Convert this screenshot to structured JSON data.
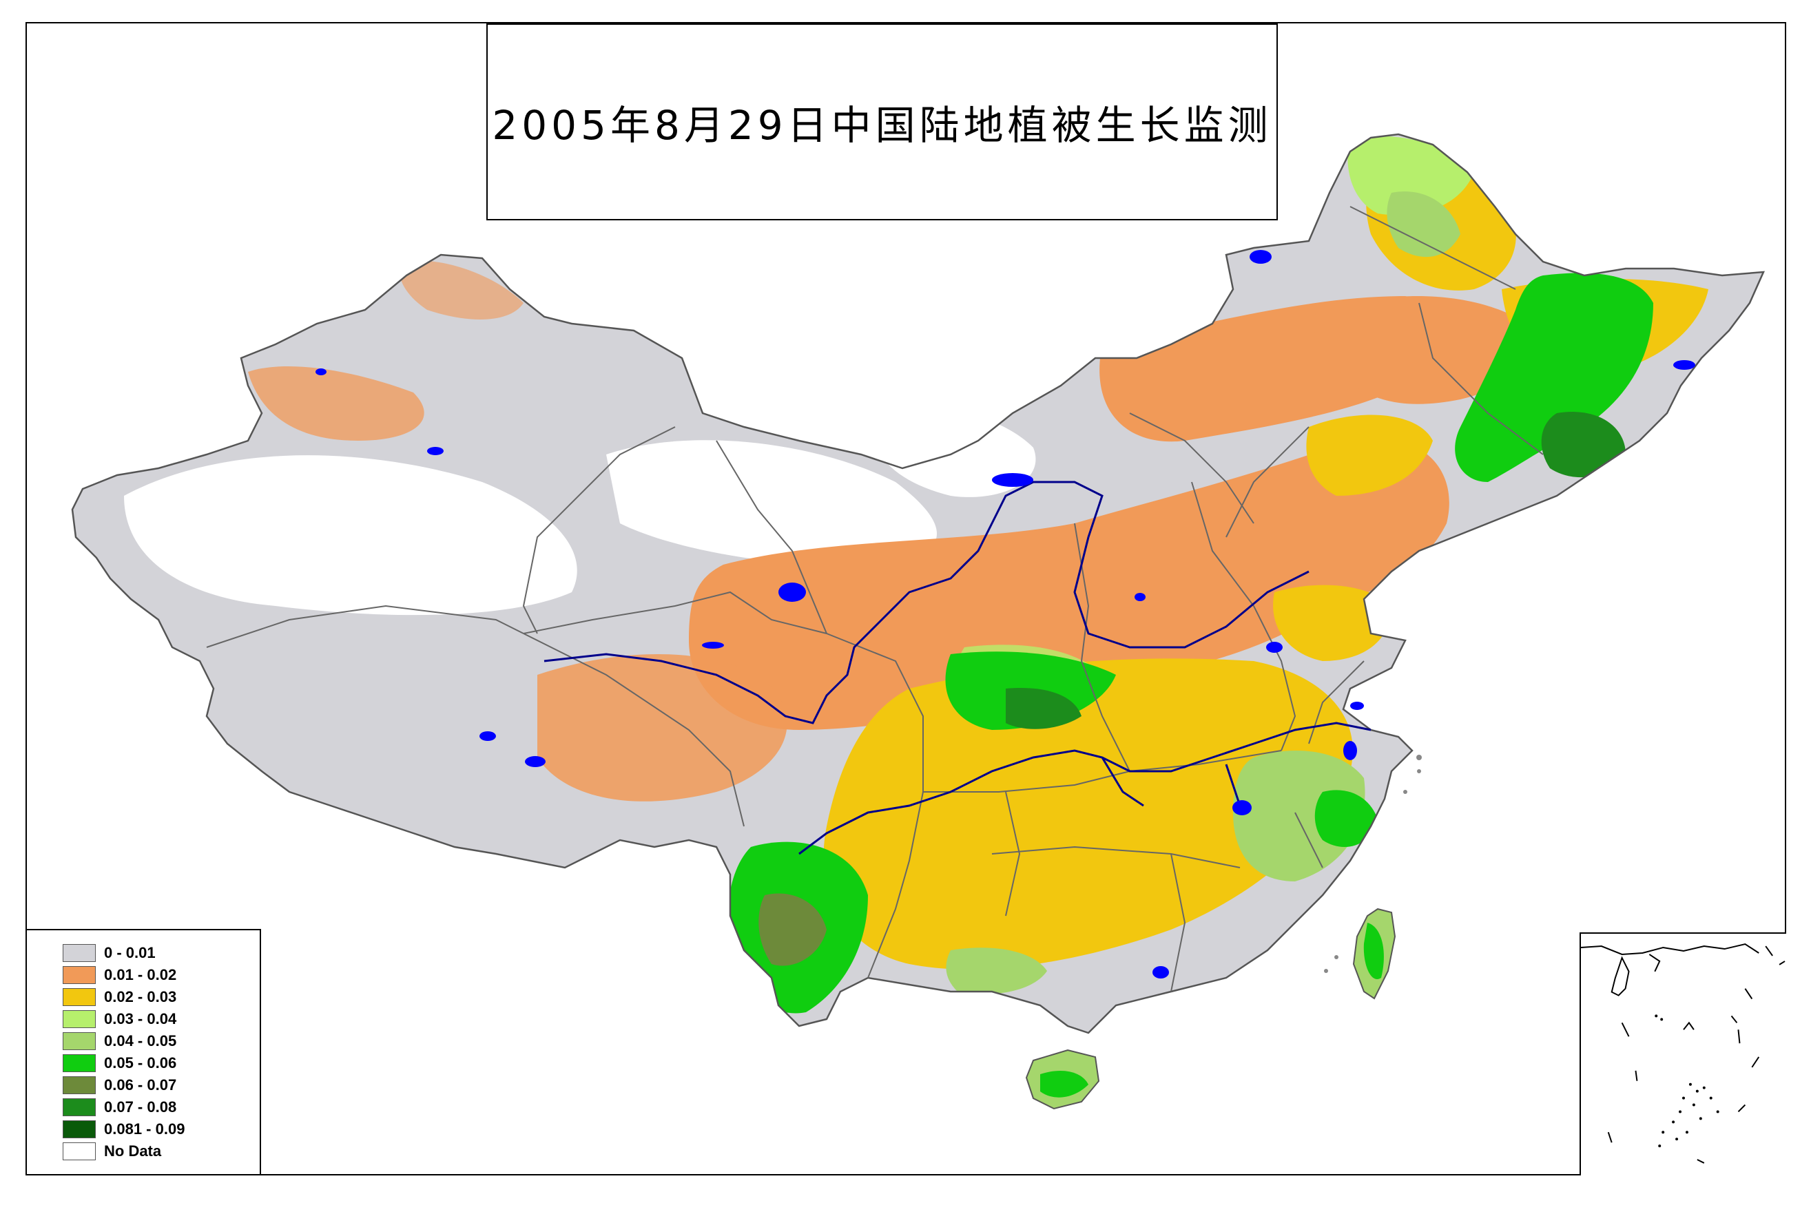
{
  "title": "2005年8月29日中国陆地植被生长监测",
  "legend": {
    "items": [
      {
        "label": "0 - 0.01",
        "color": "#d3d3d8"
      },
      {
        "label": "0.01 - 0.02",
        "color": "#f19a58"
      },
      {
        "label": "0.02 - 0.03",
        "color": "#f2c70f"
      },
      {
        "label": "0.03 - 0.04",
        "color": "#b6ef6c"
      },
      {
        "label": "0.04 - 0.05",
        "color": "#a5d66c"
      },
      {
        "label": "0.05 - 0.06",
        "color": "#10cd10"
      },
      {
        "label": "0.06 - 0.07",
        "color": "#6d8a3a"
      },
      {
        "label": "0.07 - 0.08",
        "color": "#1c8c1c"
      },
      {
        "label": "0.081 - 0.09",
        "color": "#0a5a0a"
      },
      {
        "label": "No Data",
        "color": "#ffffff"
      }
    ]
  },
  "colors": {
    "water": "#0000ff",
    "river": "#00008b",
    "boundary": "#555555"
  }
}
